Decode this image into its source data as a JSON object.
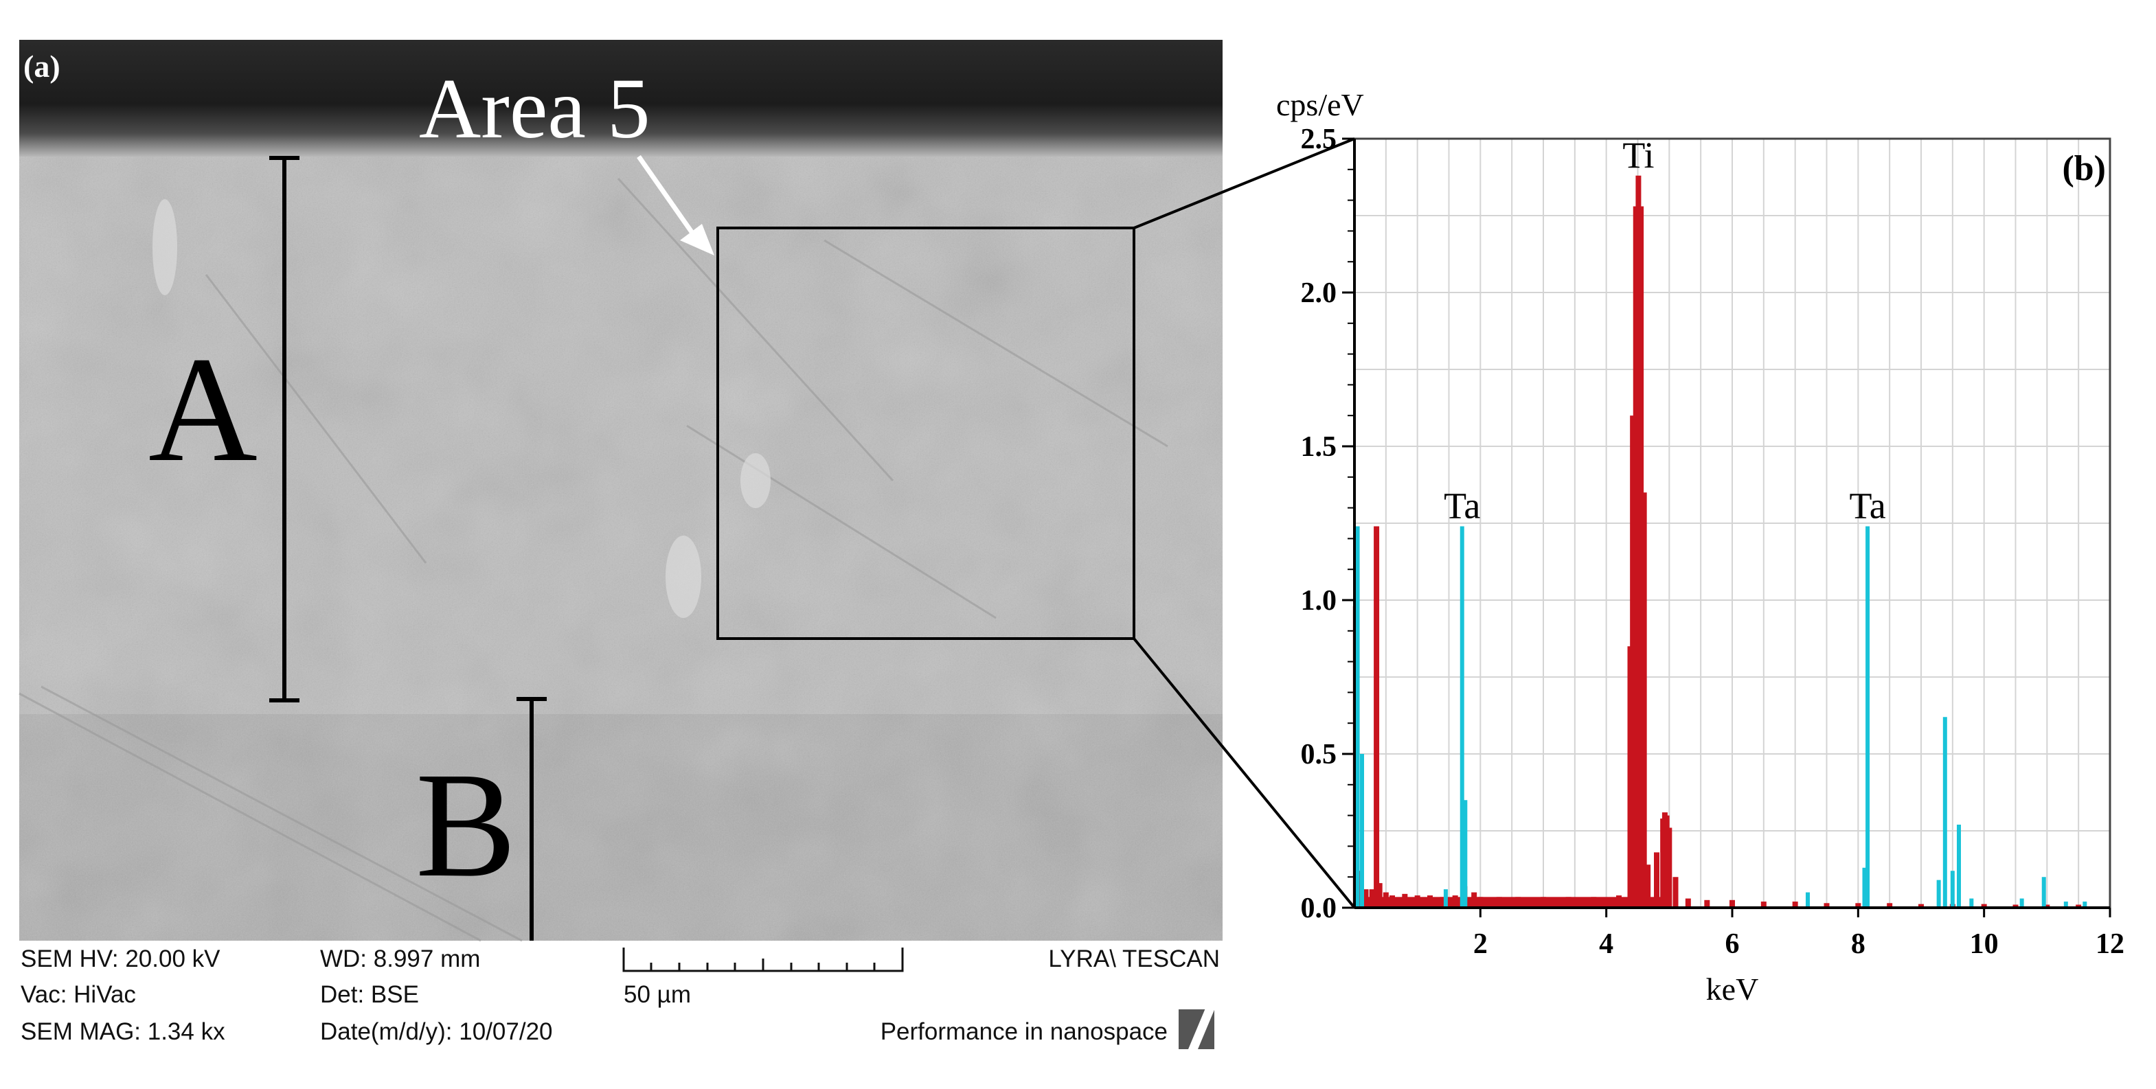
{
  "panel_a": {
    "label": "(a)",
    "area_label": "Area 5",
    "region_a": "A",
    "region_b": "B",
    "info": {
      "hv": "SEM HV: 20.00 kV",
      "vac": "Vac: HiVac",
      "mag": "SEM MAG: 1.34 kx",
      "wd": "WD: 8.997 mm",
      "det": "Det: BSE",
      "date": "Date(m/d/y): 10/07/20",
      "scalebar": "50 µm",
      "brand": "LYRA\\ TESCAN",
      "slogan": "Performance in nanospace"
    }
  },
  "chart_data": {
    "type": "bar",
    "title": "",
    "panel_label": "(b)",
    "xlabel": "keV",
    "ylabel": "cps/eV",
    "xlim": [
      0,
      12
    ],
    "ylim": [
      0,
      2.5
    ],
    "x_ticks": [
      "2",
      "4",
      "6",
      "8",
      "10",
      "12"
    ],
    "y_ticks": [
      "0.0",
      "0.5",
      "1.0",
      "1.5",
      "2.0",
      "2.5"
    ],
    "grid": true,
    "colors": {
      "spectrum": "#c8141e",
      "reference": "#19c3d8"
    },
    "annotations": [
      {
        "text": "Ti",
        "x": 4.51,
        "y": 2.38
      },
      {
        "text": "Ta",
        "x": 1.71,
        "y": 1.24
      },
      {
        "text": "Ta",
        "x": 8.15,
        "y": 1.24
      }
    ],
    "series": [
      {
        "color_key": "spectrum",
        "x": [
          0.02,
          0.1,
          0.18,
          0.28,
          0.35,
          0.4,
          0.5,
          0.6,
          0.8,
          1.0,
          1.2,
          1.4,
          1.6,
          1.75,
          1.9,
          2.0,
          2.3,
          2.6,
          3.0,
          3.4,
          3.8,
          4.2,
          4.38,
          4.42,
          4.47,
          4.51,
          4.55,
          4.6,
          4.66,
          4.8,
          4.9,
          4.93,
          4.96,
          5.0,
          5.1,
          5.3,
          5.6,
          6.0,
          6.5,
          7.0,
          7.5,
          8.0,
          8.5,
          9.0,
          9.5,
          10.0,
          10.5,
          11.0,
          11.5
        ],
        "values": [
          0.98,
          0.12,
          0.06,
          0.06,
          1.24,
          0.08,
          0.05,
          0.04,
          0.045,
          0.04,
          0.04,
          0.035,
          0.04,
          0.07,
          0.05,
          0.035,
          0.035,
          0.035,
          0.035,
          0.035,
          0.035,
          0.04,
          0.85,
          1.6,
          2.28,
          2.38,
          2.28,
          1.35,
          0.14,
          0.18,
          0.29,
          0.31,
          0.3,
          0.26,
          0.1,
          0.03,
          0.025,
          0.025,
          0.02,
          0.02,
          0.015,
          0.015,
          0.015,
          0.012,
          0.012,
          0.012,
          0.01,
          0.01,
          0.01
        ]
      },
      {
        "color_key": "reference",
        "x": [
          0.05,
          0.12,
          1.45,
          1.71,
          1.76,
          7.2,
          8.1,
          8.15,
          9.28,
          9.38,
          9.5,
          9.6,
          9.8,
          10.6,
          10.95,
          11.3,
          11.6
        ],
        "values": [
          1.24,
          0.5,
          0.06,
          1.24,
          0.35,
          0.05,
          0.13,
          1.24,
          0.09,
          0.62,
          0.12,
          0.27,
          0.03,
          0.03,
          0.1,
          0.02,
          0.02
        ]
      }
    ]
  }
}
